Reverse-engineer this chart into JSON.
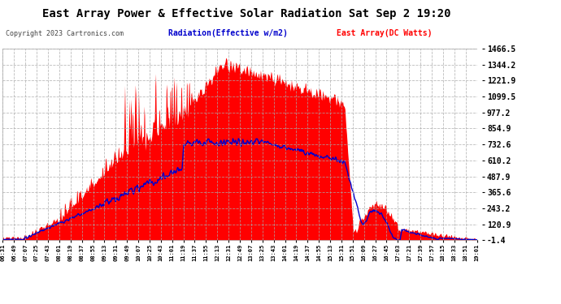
{
  "title": "East Array Power & Effective Solar Radiation Sat Sep 2 19:20",
  "copyright": "Copyright 2023 Cartronics.com",
  "legend_radiation": "Radiation(Effective w/m2)",
  "legend_east": "East Array(DC Watts)",
  "yticks": [
    1466.5,
    1344.2,
    1221.9,
    1099.5,
    977.2,
    854.9,
    732.6,
    610.2,
    487.9,
    365.6,
    243.2,
    120.9,
    -1.4
  ],
  "ymin": -1.4,
  "ymax": 1466.5,
  "background_color": "#ffffff",
  "plot_bg_color": "#ffffff",
  "grid_color": "#aaaaaa",
  "red_color": "#ff0000",
  "blue_color": "#0000cc",
  "title_color": "#000000",
  "label_color": "#000000",
  "copyright_color": "#444444",
  "xtick_labels": [
    "06:31",
    "06:49",
    "07:07",
    "07:25",
    "07:43",
    "08:01",
    "08:19",
    "08:37",
    "08:55",
    "09:13",
    "09:31",
    "09:49",
    "10:07",
    "10:25",
    "10:43",
    "11:01",
    "11:19",
    "11:37",
    "11:55",
    "12:13",
    "12:31",
    "12:49",
    "13:07",
    "13:25",
    "13:43",
    "14:01",
    "14:19",
    "14:37",
    "14:55",
    "15:13",
    "15:31",
    "15:51",
    "16:09",
    "16:27",
    "16:45",
    "17:03",
    "17:21",
    "17:39",
    "17:57",
    "18:15",
    "18:33",
    "18:51",
    "19:01"
  ]
}
